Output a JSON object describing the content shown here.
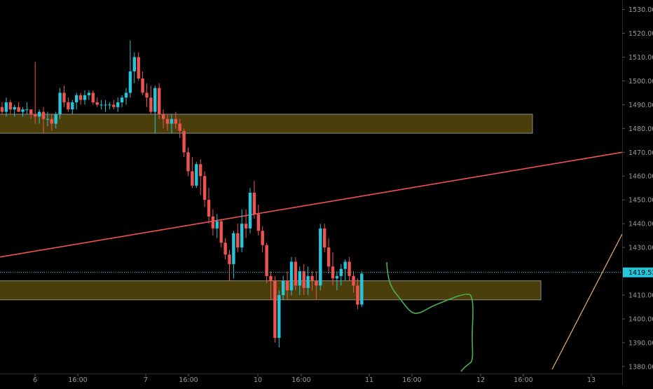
{
  "chart_data": {
    "type": "candlestick",
    "background": "#000000",
    "colors": {
      "up": "#26c6da",
      "down": "#ef5350",
      "zone_fill": "#4a3f0a",
      "zone_border": "#8a8a8a",
      "trendline": "#ef5350",
      "projection": "#4caf50",
      "diagonal": "#f0b070",
      "price_line": "#26c6da",
      "axis_text": "#9a9a9a",
      "price_label_bg": "#26c6da"
    },
    "price_axis": {
      "ylim": [
        1372,
        1534
      ],
      "ticks": [
        "1530.00",
        "1520.00",
        "1510.00",
        "1500.00",
        "1490.00",
        "1480.00",
        "1470.00",
        "1460.00",
        "1450.00",
        "1440.00",
        "1430.00",
        "1420.00",
        "1410.00",
        "1400.00",
        "1390.00",
        "1380.00"
      ]
    },
    "time_axis": {
      "ticks": [
        "6",
        "16:00",
        "7",
        "16:00",
        "10",
        "16:00",
        "11",
        "16:00",
        "12",
        "16:00",
        "13"
      ]
    },
    "current_price": {
      "value": 1419.53,
      "label": "1419.53"
    },
    "zones": [
      {
        "name": "upper-zone",
        "top": 1486,
        "bottom": 1478
      },
      {
        "name": "lower-zone",
        "top": 1416,
        "bottom": 1408
      }
    ],
    "trendline": {
      "y_start": 1426,
      "y_end": 1470
    },
    "candles": [
      [
        1489,
        1491,
        1486,
        1487
      ],
      [
        1487,
        1493,
        1485,
        1491
      ],
      [
        1491,
        1492,
        1486,
        1488
      ],
      [
        1488,
        1490,
        1485,
        1489
      ],
      [
        1489,
        1491,
        1487,
        1487
      ],
      [
        1487,
        1489,
        1485,
        1488
      ],
      [
        1488,
        1491,
        1486,
        1488
      ],
      [
        1488,
        1488,
        1484,
        1486
      ],
      [
        1486,
        1508,
        1482,
        1485
      ],
      [
        1485,
        1488,
        1482,
        1487
      ],
      [
        1487,
        1489,
        1478,
        1484
      ],
      [
        1484,
        1487,
        1481,
        1484
      ],
      [
        1484,
        1486,
        1479,
        1482
      ],
      [
        1482,
        1487,
        1480,
        1486
      ],
      [
        1486,
        1497,
        1484,
        1495
      ],
      [
        1495,
        1498,
        1489,
        1491
      ],
      [
        1491,
        1493,
        1487,
        1488
      ],
      [
        1488,
        1492,
        1486,
        1491
      ],
      [
        1491,
        1495,
        1488,
        1494
      ],
      [
        1494,
        1495,
        1490,
        1492
      ],
      [
        1492,
        1496,
        1490,
        1494
      ],
      [
        1494,
        1496,
        1492,
        1495
      ],
      [
        1495,
        1496,
        1490,
        1491
      ],
      [
        1491,
        1493,
        1489,
        1490
      ],
      [
        1490,
        1492,
        1488,
        1490
      ],
      [
        1490,
        1492,
        1487,
        1490
      ],
      [
        1490,
        1491,
        1488,
        1490
      ],
      [
        1490,
        1492,
        1488,
        1489
      ],
      [
        1489,
        1493,
        1487,
        1491
      ],
      [
        1491,
        1494,
        1489,
        1493
      ],
      [
        1493,
        1497,
        1490,
        1495
      ],
      [
        1495,
        1517,
        1493,
        1504
      ],
      [
        1504,
        1512,
        1499,
        1510
      ],
      [
        1510,
        1512,
        1500,
        1501
      ],
      [
        1501,
        1504,
        1494,
        1495
      ],
      [
        1495,
        1499,
        1489,
        1493
      ],
      [
        1493,
        1498,
        1486,
        1487
      ],
      [
        1487,
        1498,
        1478,
        1497
      ],
      [
        1497,
        1499,
        1484,
        1486
      ],
      [
        1486,
        1488,
        1480,
        1484
      ],
      [
        1484,
        1486,
        1479,
        1482
      ],
      [
        1482,
        1486,
        1478,
        1484
      ],
      [
        1484,
        1487,
        1480,
        1482
      ],
      [
        1482,
        1484,
        1476,
        1479
      ],
      [
        1479,
        1480,
        1468,
        1470
      ],
      [
        1470,
        1472,
        1460,
        1462
      ],
      [
        1462,
        1468,
        1455,
        1456
      ],
      [
        1456,
        1466,
        1455,
        1465
      ],
      [
        1465,
        1467,
        1452,
        1460
      ],
      [
        1460,
        1462,
        1447,
        1450
      ],
      [
        1450,
        1455,
        1440,
        1443
      ],
      [
        1443,
        1446,
        1435,
        1438
      ],
      [
        1438,
        1444,
        1434,
        1441
      ],
      [
        1441,
        1442,
        1430,
        1432
      ],
      [
        1432,
        1434,
        1425,
        1427
      ],
      [
        1427,
        1429,
        1416,
        1423
      ],
      [
        1423,
        1437,
        1417,
        1436
      ],
      [
        1436,
        1440,
        1428,
        1430
      ],
      [
        1430,
        1446,
        1428,
        1440
      ],
      [
        1440,
        1446,
        1434,
        1438
      ],
      [
        1438,
        1455,
        1436,
        1453
      ],
      [
        1453,
        1458,
        1442,
        1444
      ],
      [
        1444,
        1448,
        1435,
        1437
      ],
      [
        1437,
        1439,
        1428,
        1431
      ],
      [
        1431,
        1432,
        1415,
        1418
      ],
      [
        1418,
        1420,
        1408,
        1416
      ],
      [
        1416,
        1418,
        1390,
        1392
      ],
      [
        1392,
        1412,
        1388,
        1410
      ],
      [
        1410,
        1418,
        1408,
        1416
      ],
      [
        1416,
        1420,
        1408,
        1412
      ],
      [
        1412,
        1426,
        1410,
        1424
      ],
      [
        1424,
        1426,
        1412,
        1414
      ],
      [
        1414,
        1422,
        1410,
        1420
      ],
      [
        1420,
        1423,
        1410,
        1413
      ],
      [
        1413,
        1422,
        1410,
        1418
      ],
      [
        1418,
        1420,
        1412,
        1416
      ],
      [
        1416,
        1420,
        1408,
        1414
      ],
      [
        1414,
        1440,
        1412,
        1438
      ],
      [
        1438,
        1440,
        1428,
        1430
      ],
      [
        1430,
        1434,
        1419,
        1422
      ],
      [
        1422,
        1428,
        1414,
        1417
      ],
      [
        1417,
        1420,
        1412,
        1418
      ],
      [
        1418,
        1423,
        1414,
        1421
      ],
      [
        1421,
        1425,
        1416,
        1424
      ],
      [
        1424,
        1426,
        1416,
        1418
      ],
      [
        1418,
        1420,
        1411,
        1414
      ],
      [
        1414,
        1417,
        1404,
        1406
      ],
      [
        1406,
        1420,
        1405,
        1419
      ]
    ]
  }
}
